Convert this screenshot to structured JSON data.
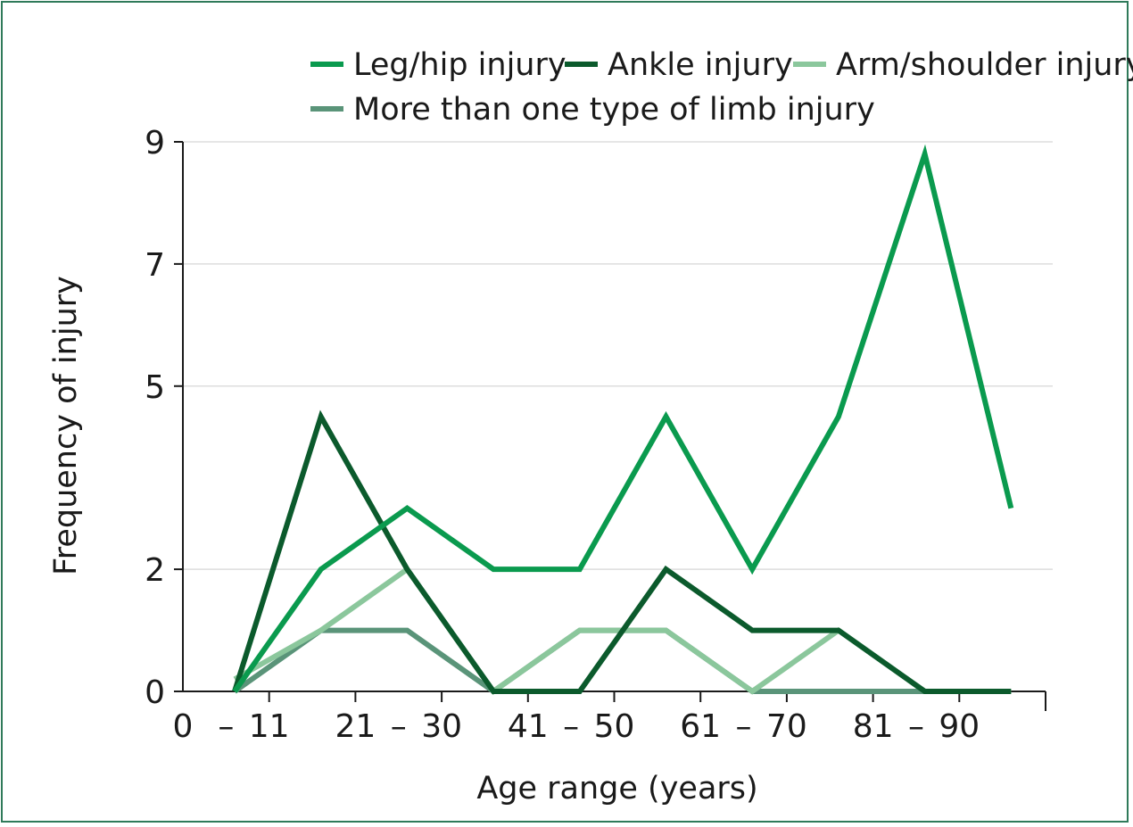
{
  "chart_data": {
    "type": "line",
    "title": "",
    "xlabel": "Age range (years)",
    "ylabel": "Frequency of injury",
    "yticks": [
      "0",
      "2",
      "5",
      "7",
      "9"
    ],
    "xtick_labels": [
      {
        "text": "0",
        "data_x": 0
      },
      {
        "text": "–",
        "data_x": 0.5
      },
      {
        "text": "11",
        "data_x": 1
      },
      {
        "text": "21",
        "data_x": 2
      },
      {
        "text": "–",
        "data_x": 2.5
      },
      {
        "text": "30",
        "data_x": 3
      },
      {
        "text": "41",
        "data_x": 4
      },
      {
        "text": "–",
        "data_x": 4.5
      },
      {
        "text": "50",
        "data_x": 5
      },
      {
        "text": "61",
        "data_x": 6
      },
      {
        "text": "–",
        "data_x": 6.5
      },
      {
        "text": "70",
        "data_x": 7
      },
      {
        "text": "81",
        "data_x": 8
      },
      {
        "text": "–",
        "data_x": 8.5
      },
      {
        "text": "90",
        "data_x": 9
      }
    ],
    "x_range": [
      0,
      10
    ],
    "y_range": [
      0,
      9
    ],
    "grid": "horizontal",
    "legend_position": "top",
    "x": [
      0.6,
      1.6,
      2.6,
      3.6,
      4.6,
      5.6,
      6.6,
      7.6,
      8.6,
      9.6
    ],
    "series": [
      {
        "name": "Leg/hip injury",
        "color": "#0a9a4e",
        "values": [
          0,
          2,
          3,
          2,
          2,
          4.5,
          2,
          4.5,
          8.8,
          3
        ]
      },
      {
        "name": "Ankle injury",
        "color": "#0b5a2c",
        "values": [
          0,
          4.5,
          2,
          0,
          0,
          2,
          1,
          1,
          0,
          0
        ]
      },
      {
        "name": "Arm/shoulder injury",
        "color": "#8bc79c",
        "values": [
          0.2,
          1,
          2,
          0,
          1,
          1,
          0,
          1,
          0,
          0
        ]
      },
      {
        "name": "More than one type of limb injury",
        "color": "#5a9479",
        "values": [
          0,
          1,
          1,
          0,
          1,
          1,
          0,
          0,
          0,
          0
        ]
      }
    ]
  }
}
